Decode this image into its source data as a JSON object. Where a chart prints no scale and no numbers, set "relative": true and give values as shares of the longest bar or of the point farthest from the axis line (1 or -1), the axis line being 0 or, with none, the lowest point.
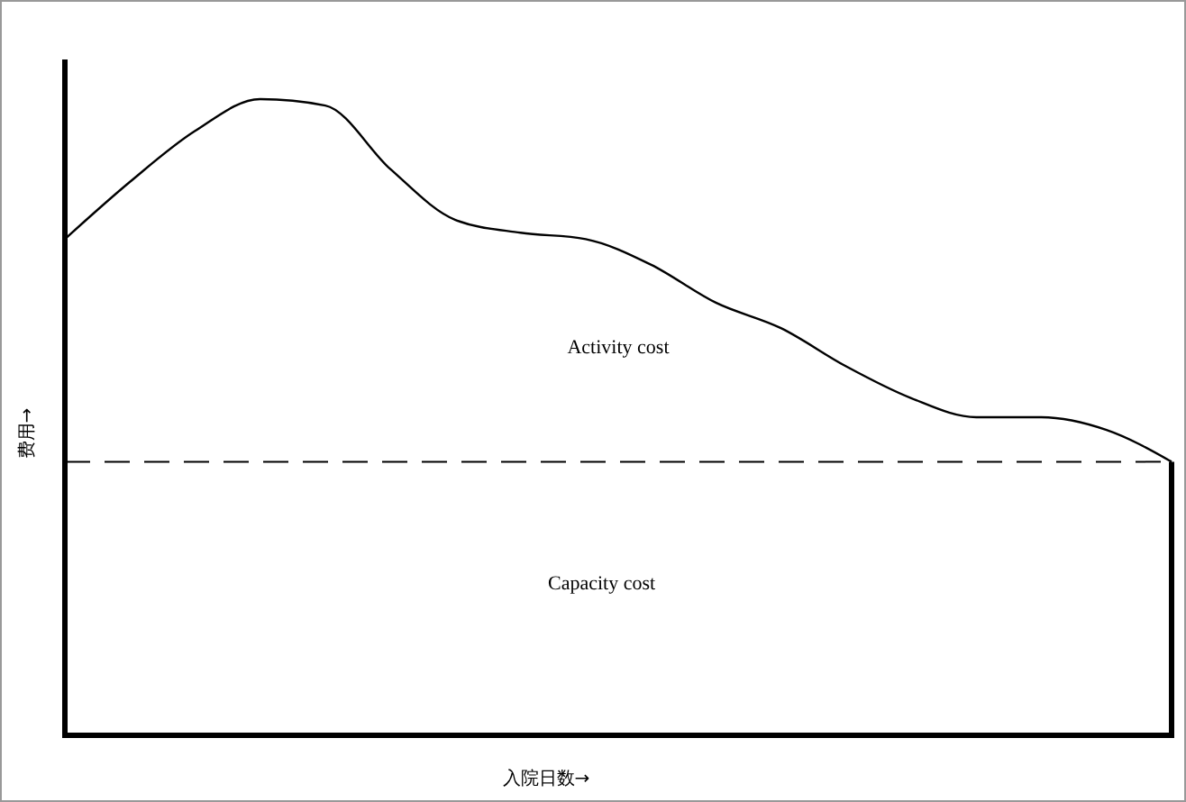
{
  "chart_data": {
    "type": "line",
    "relative": true,
    "xlabel": "入院日数→",
    "ylabel": "费用→",
    "categories": [
      null,
      null,
      null,
      null,
      null,
      null,
      null,
      null,
      null,
      null,
      null,
      null,
      null,
      null,
      null,
      null,
      null,
      null
    ],
    "values": [
      0.78,
      0.87,
      0.95,
      1,
      0.99,
      0.89,
      0.81,
      0.79,
      0.78,
      0.74,
      0.68,
      0.64,
      0.58,
      0.53,
      0.5,
      0.5,
      0.48,
      0.43
    ],
    "color": "#000000",
    "marker": "none",
    "line_style": "solid",
    "ref_lines": [
      {
        "axis": "y",
        "value": 0.43,
        "line_style": "dashed",
        "color": "#000000"
      }
    ],
    "annotations": [
      "Activity cost",
      "Capacity cost"
    ]
  }
}
